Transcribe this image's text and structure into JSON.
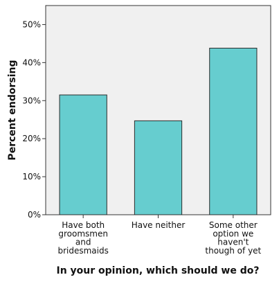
{
  "chart_data": {
    "type": "bar",
    "title": "",
    "xlabel": "In your opinion, which should we do?",
    "ylabel": "Percent endorsing",
    "categories": [
      [
        "Have both",
        "groomsmen",
        "and",
        "bridesmaids"
      ],
      [
        "Have neither"
      ],
      [
        "Some other",
        "option we",
        "haven't",
        "though of yet"
      ]
    ],
    "values": [
      31.5,
      24.7,
      43.8
    ],
    "ylim": [
      0,
      55
    ],
    "yticks": [
      {
        "value": 0,
        "label": "0%"
      },
      {
        "value": 10,
        "label": "10%"
      },
      {
        "value": 20,
        "label": "20%"
      },
      {
        "value": 30,
        "label": "30%"
      },
      {
        "value": 40,
        "label": "40%"
      },
      {
        "value": 50,
        "label": "50%"
      }
    ],
    "grid": false,
    "colors": {
      "bar_fill": "#66CDCF",
      "bar_stroke": "#2b2b2b",
      "plot_background": "#F0F0F0",
      "frame": "#333333"
    }
  }
}
